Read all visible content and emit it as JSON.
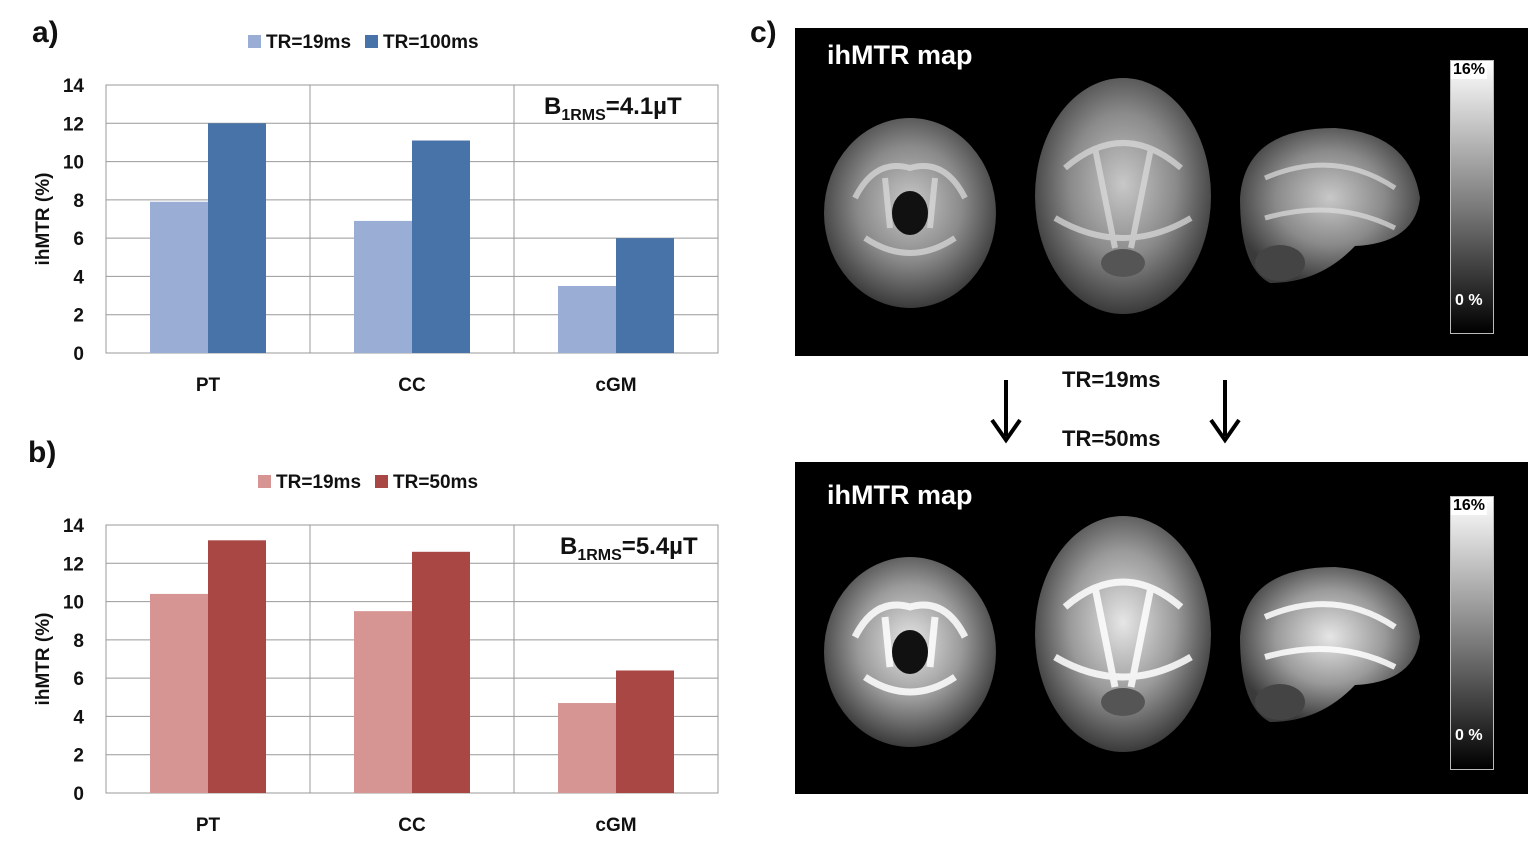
{
  "panels": {
    "a": "a)",
    "b": "b)",
    "c": "c)"
  },
  "chart_data": [
    {
      "type": "bar",
      "panel": "a",
      "categories": [
        "PT",
        "CC",
        "cGM"
      ],
      "series": [
        {
          "name": "TR=19ms",
          "values": [
            7.9,
            6.9,
            3.5
          ],
          "color": "#9aadd4"
        },
        {
          "name": "TR=100ms",
          "values": [
            12.0,
            11.1,
            6.0
          ],
          "color": "#4873a9"
        }
      ],
      "ylabel": "ihMTR (%)",
      "ylim": [
        0,
        14
      ],
      "yticks": [
        0,
        2,
        4,
        6,
        8,
        10,
        12,
        14
      ],
      "grid": true,
      "legend": "top",
      "annotation": {
        "main": "B",
        "sub": "1RMS",
        "rest": "=4.1µT"
      }
    },
    {
      "type": "bar",
      "panel": "b",
      "categories": [
        "PT",
        "CC",
        "cGM"
      ],
      "series": [
        {
          "name": "TR=19ms",
          "values": [
            10.4,
            9.5,
            4.7
          ],
          "color": "#d69593"
        },
        {
          "name": "TR=50ms",
          "values": [
            13.2,
            12.6,
            6.4
          ],
          "color": "#a94744"
        }
      ],
      "ylabel": "ihMTR (%)",
      "ylim": [
        0,
        14
      ],
      "yticks": [
        0,
        2,
        4,
        6,
        8,
        10,
        12,
        14
      ],
      "grid": true,
      "legend": "top",
      "annotation": {
        "main": "B",
        "sub": "1RMS",
        "rest": "=5.4µT"
      }
    }
  ],
  "maps": {
    "top": {
      "title": "ihMTR map",
      "scale_max": "16%",
      "scale_min": "0 %"
    },
    "bottom": {
      "title": "ihMTR map",
      "scale_max": "16%",
      "scale_min": "0 %"
    },
    "transition_from": "TR=19ms",
    "transition_to": "TR=50ms",
    "views": [
      "coronal",
      "axial",
      "sagittal"
    ]
  },
  "icons": {
    "arrow": "down-arrow-icon"
  }
}
